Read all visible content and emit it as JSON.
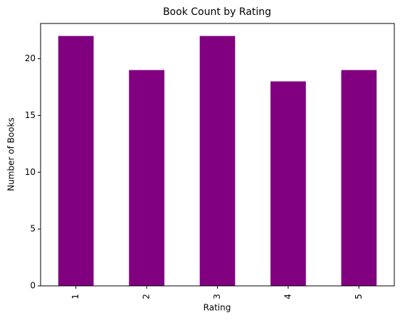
{
  "chart_data": {
    "type": "bar",
    "title": "Book Count by Rating",
    "x_label": "Rating",
    "y_label": "Number of Books",
    "categories": [
      "1",
      "2",
      "3",
      "4",
      "5"
    ],
    "values": [
      22,
      19,
      22,
      18,
      19
    ],
    "color": "#800080",
    "ylim": [
      0,
      23.1
    ],
    "yticks": [
      0,
      5,
      10,
      15,
      20
    ],
    "grid": false
  }
}
